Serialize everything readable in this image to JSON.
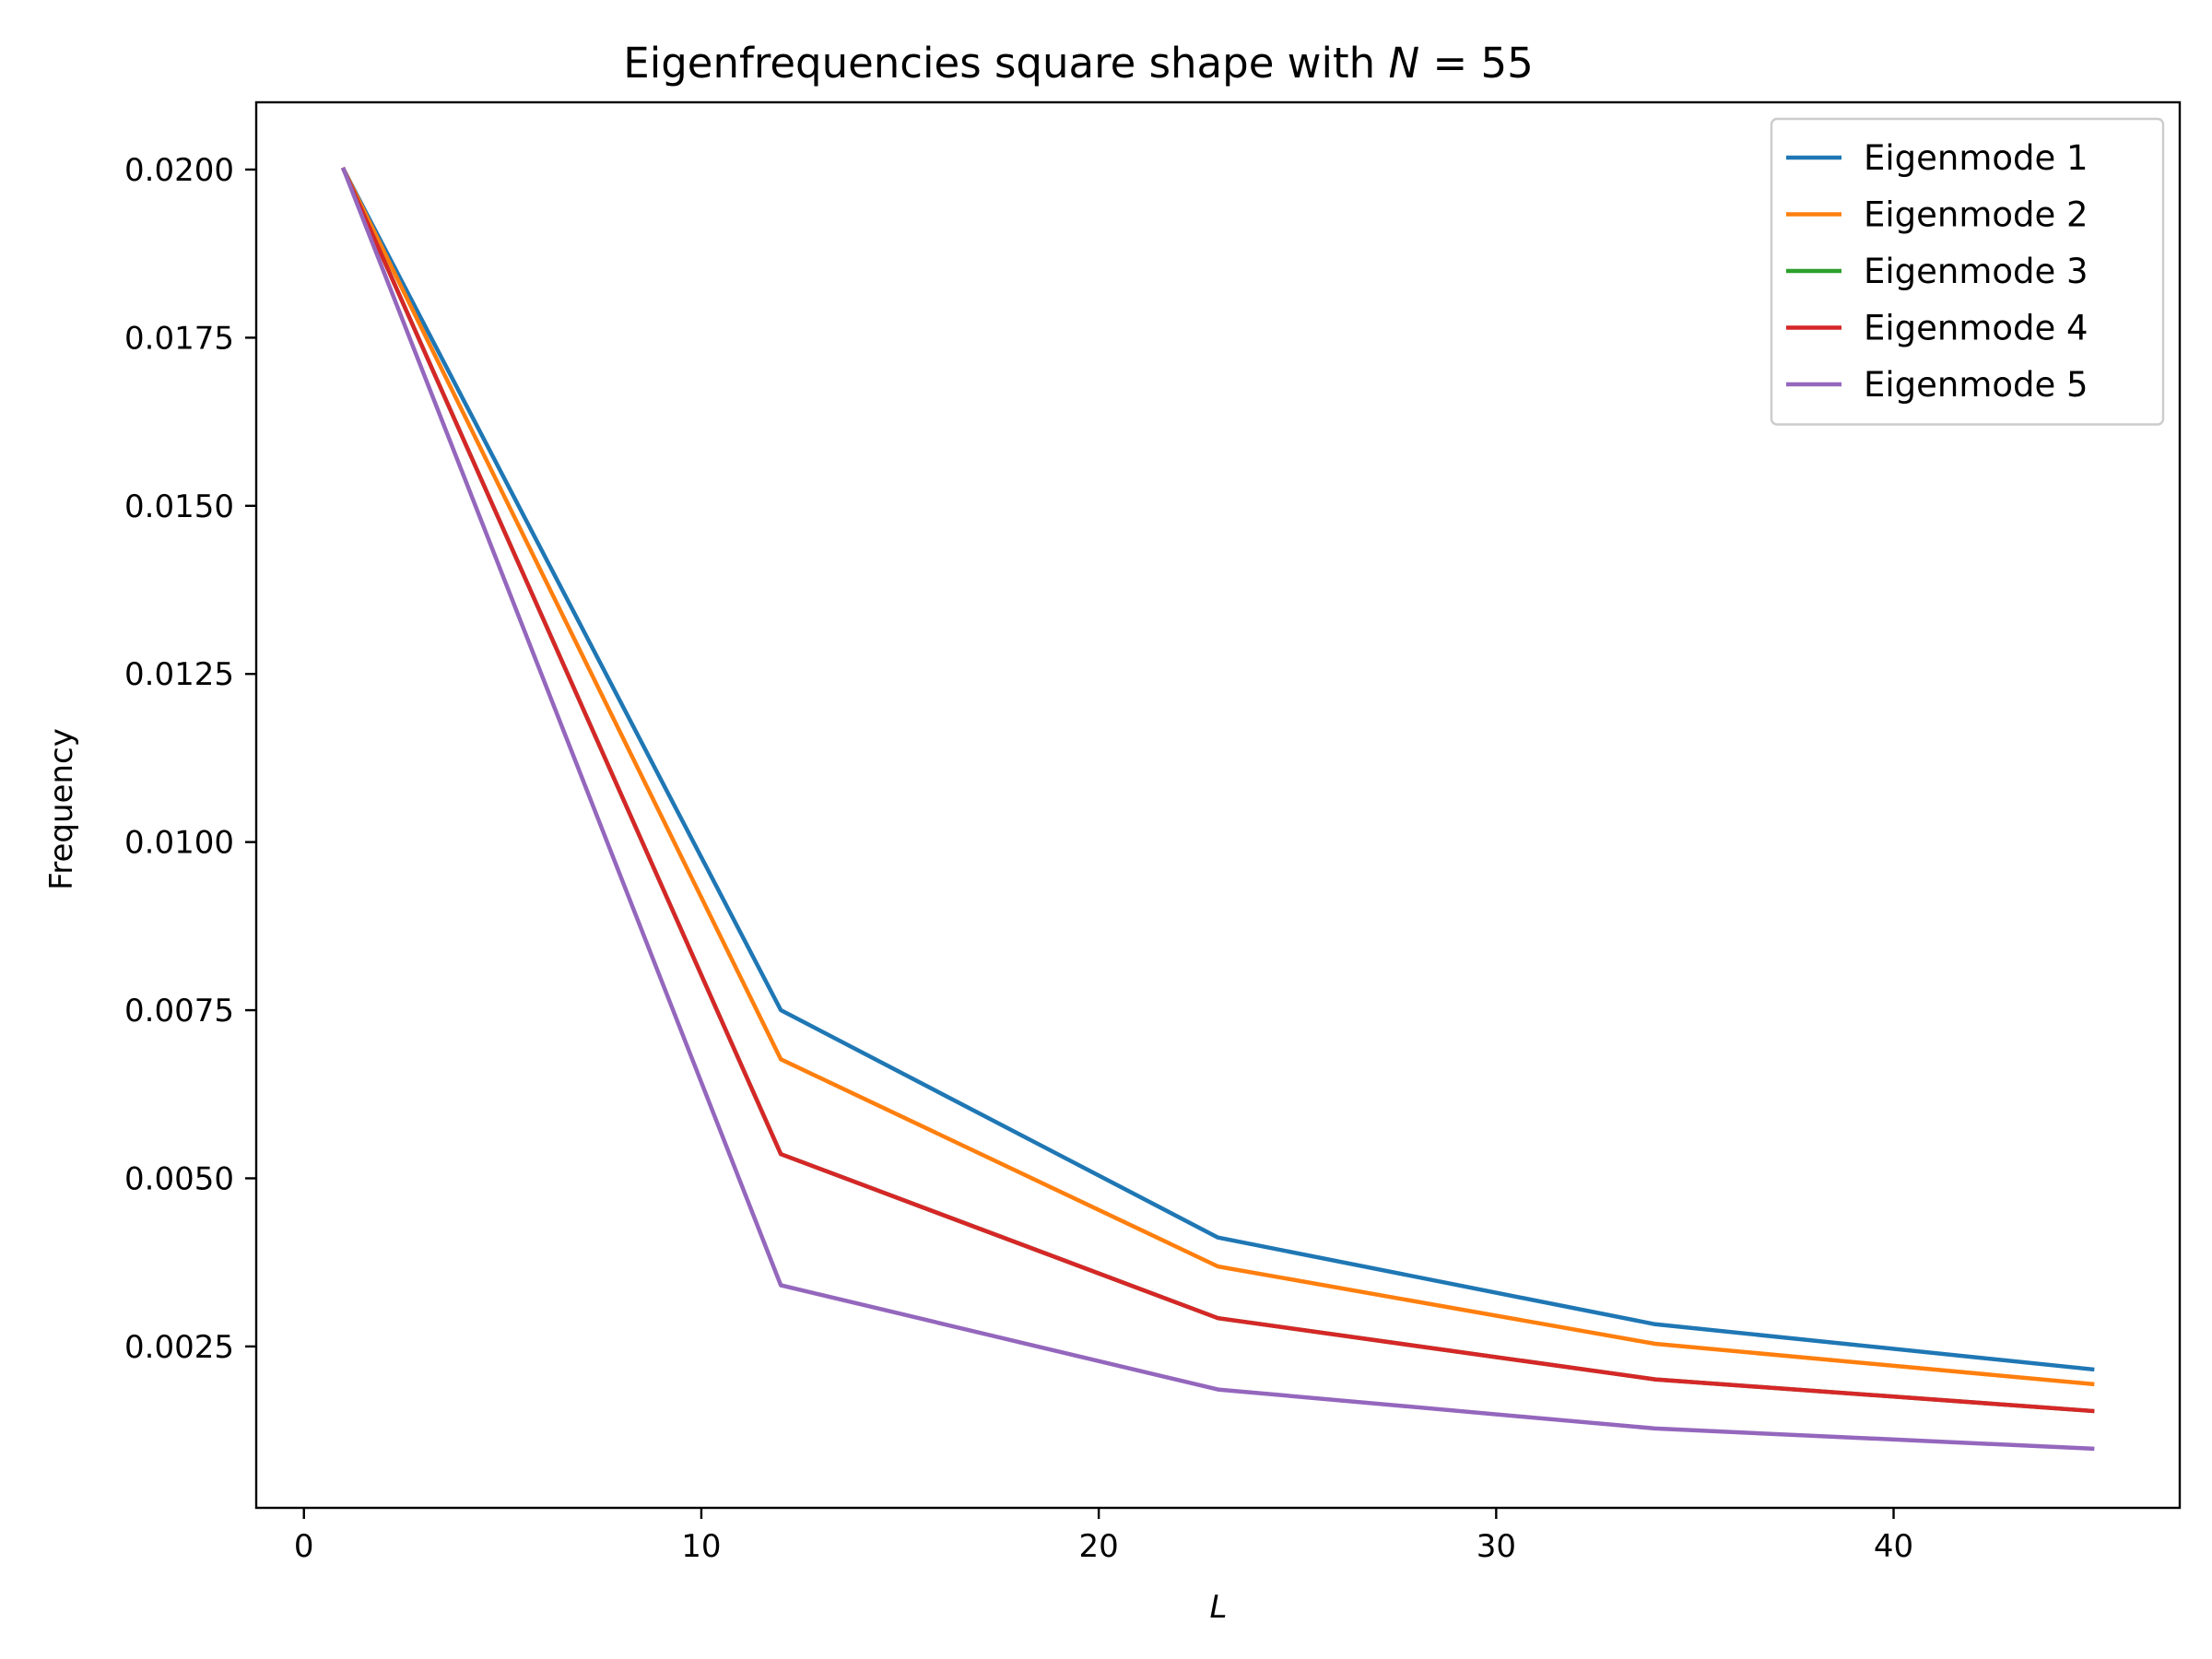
{
  "chart_data": {
    "type": "line",
    "title_prefix": "Eigenfrequencies square shape with ",
    "title_math_var": "N",
    "title_math_rest": " = 55",
    "xlabel": "L",
    "ylabel": "Frequency",
    "xlim": [
      -1.2,
      47.2
    ],
    "ylim": [
      0.0001,
      0.021
    ],
    "xticks": [
      0,
      10,
      20,
      30,
      40
    ],
    "xtick_labels": [
      "0",
      "10",
      "20",
      "30",
      "40"
    ],
    "yticks": [
      0.0025,
      0.005,
      0.0075,
      0.01,
      0.0125,
      0.015,
      0.0175,
      0.02
    ],
    "ytick_labels": [
      "0.0025",
      "0.0050",
      "0.0075",
      "0.0100",
      "0.0125",
      "0.0150",
      "0.0175",
      "0.0200"
    ],
    "grid": false,
    "legend_position": "top-right",
    "x": [
      1,
      12,
      23,
      34,
      45
    ],
    "series": [
      {
        "name": "Eigenmode 1",
        "color": "#1f77b4",
        "values": [
          0.02,
          0.0075,
          0.00412,
          0.00283,
          0.00216
        ]
      },
      {
        "name": "Eigenmode 2",
        "color": "#ff7f0e",
        "values": [
          0.02,
          0.00677,
          0.00369,
          0.00254,
          0.00194
        ]
      },
      {
        "name": "Eigenmode 3",
        "color": "#2ca02c",
        "values": [
          0.02,
          0.00536,
          0.00292,
          0.00201,
          0.00154
        ]
      },
      {
        "name": "Eigenmode 4",
        "color": "#d62728",
        "values": [
          0.02,
          0.00536,
          0.00292,
          0.00201,
          0.00154
        ]
      },
      {
        "name": "Eigenmode 5",
        "color": "#9467bd",
        "values": [
          0.02,
          0.00341,
          0.00186,
          0.00128,
          0.00098
        ]
      }
    ]
  }
}
